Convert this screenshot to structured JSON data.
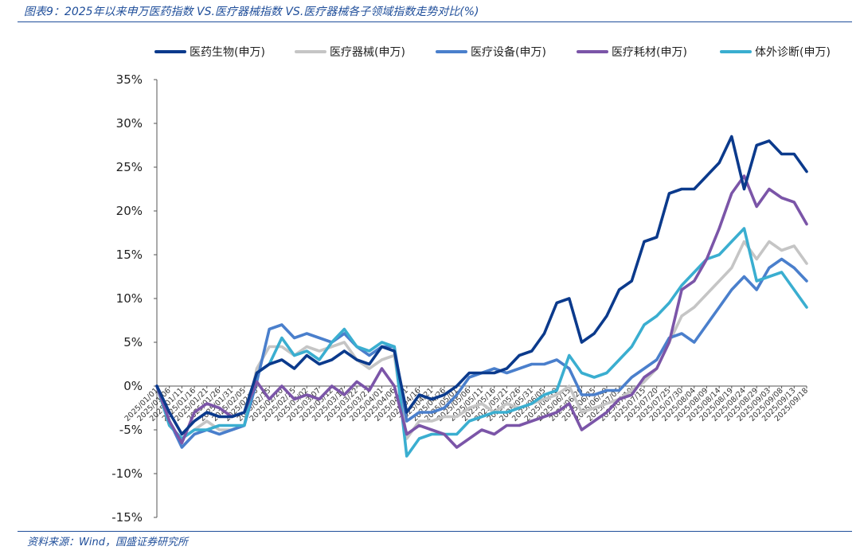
{
  "title": "图表9：2025年以来申万医药指数 VS.医疗器械指数 VS.医疗器械各子领域指数走势对比(%)",
  "source": "资料来源：Wind，国盛证券研究所",
  "chart_data": {
    "type": "line",
    "title": "图表9：2025年以来申万医药指数 VS.医疗器械指数 VS.医疗器械各子领域指数走势对比(%)",
    "ylabel": "",
    "xlabel": "",
    "ylim": [
      -15,
      35
    ],
    "yticks": [
      "35%",
      "30%",
      "25%",
      "20%",
      "15%",
      "10%",
      "5%",
      "0%",
      "-5%",
      "-10%",
      "-15%"
    ],
    "ytick_values": [
      35,
      30,
      25,
      20,
      15,
      10,
      5,
      0,
      -5,
      -10,
      -15
    ],
    "legend_position": "top",
    "grid": false,
    "x": [
      "2025/01/01",
      "2025/01/06",
      "2025/01/11",
      "2025/01/16",
      "2025/01/21",
      "2025/01/26",
      "2025/01/31",
      "2025/02/05",
      "2025/02/10",
      "2025/02/15",
      "2025/02/20",
      "2025/02/25",
      "2025/03/02",
      "2025/03/07",
      "2025/03/12",
      "2025/03/17",
      "2025/03/22",
      "2025/03/27",
      "2025/04/01",
      "2025/04/06",
      "2025/04/11",
      "2025/04/16",
      "2025/04/21",
      "2025/04/26",
      "2025/05/01",
      "2025/05/06",
      "2025/05/11",
      "2025/05/16",
      "2025/05/21",
      "2025/05/26",
      "2025/05/31",
      "2025/06/05",
      "2025/06/10",
      "2025/06/15",
      "2025/06/20",
      "2025/06/25",
      "2025/06/30",
      "2025/07/05",
      "2025/07/10",
      "2025/07/15",
      "2025/07/20",
      "2025/07/25",
      "2025/07/30",
      "2025/08/04",
      "2025/08/09",
      "2025/08/14",
      "2025/08/19",
      "2025/08/24",
      "2025/08/29",
      "2025/09/03",
      "2025/09/08",
      "2025/09/13",
      "2025/09/18"
    ],
    "series": [
      {
        "name": "医药生物(申万)",
        "color": "#0b3a8c",
        "values": [
          0.0,
          -3.0,
          -5.5,
          -4.0,
          -3.0,
          -3.5,
          -3.5,
          -3.0,
          1.5,
          2.5,
          3.0,
          2.0,
          3.5,
          2.5,
          3.0,
          4.0,
          3.0,
          2.5,
          4.5,
          4.0,
          -3.0,
          -1.0,
          -1.5,
          -1.0,
          0.0,
          1.5,
          1.5,
          1.5,
          2.0,
          3.5,
          4.0,
          6.0,
          9.5,
          10.0,
          5.0,
          6.0,
          8.0,
          11.0,
          12.0,
          16.5,
          17.0,
          22.0,
          22.5,
          22.5,
          24.0,
          25.5,
          28.5,
          22.5,
          27.5,
          28.0,
          26.5,
          26.5,
          24.5
        ]
      },
      {
        "name": "医疗器械(申万)",
        "color": "#c5c5c5",
        "values": [
          0.0,
          -4.5,
          -6.0,
          -5.0,
          -4.0,
          -5.0,
          -5.0,
          -4.5,
          2.0,
          4.5,
          4.5,
          3.5,
          4.5,
          4.0,
          4.5,
          5.0,
          3.0,
          2.0,
          3.0,
          3.5,
          -6.0,
          -4.0,
          -4.0,
          -3.5,
          -3.5,
          -2.5,
          -2.0,
          -3.0,
          -2.0,
          -2.5,
          -2.0,
          -1.5,
          -1.0,
          0.0,
          -3.0,
          -2.5,
          -2.0,
          -1.5,
          -0.5,
          0.5,
          2.0,
          5.0,
          8.0,
          9.0,
          10.5,
          12.0,
          13.5,
          16.5,
          14.5,
          16.5,
          15.5,
          16.0,
          14.0
        ]
      },
      {
        "name": "医疗设备(申万)",
        "color": "#4a7fcc",
        "values": [
          0.0,
          -4.0,
          -7.0,
          -5.5,
          -5.0,
          -5.5,
          -5.0,
          -4.5,
          0.5,
          6.5,
          7.0,
          5.5,
          6.0,
          5.5,
          5.0,
          6.0,
          4.5,
          3.5,
          4.5,
          4.5,
          -4.0,
          -3.0,
          -3.0,
          -2.5,
          -1.0,
          1.0,
          1.5,
          2.0,
          1.5,
          2.0,
          2.5,
          2.5,
          3.0,
          2.0,
          -1.0,
          -1.0,
          -0.5,
          -0.5,
          1.0,
          2.0,
          3.0,
          5.5,
          6.0,
          5.0,
          7.0,
          9.0,
          11.0,
          12.5,
          11.0,
          13.5,
          14.5,
          13.5,
          12.0
        ]
      },
      {
        "name": "医疗耗材(申万)",
        "color": "#7b55a8",
        "values": [
          0.0,
          -4.0,
          -6.5,
          -3.0,
          -2.0,
          -2.5,
          -3.5,
          -3.0,
          0.5,
          -1.5,
          0.0,
          -1.5,
          -1.0,
          -1.5,
          0.0,
          -1.0,
          0.5,
          -0.5,
          2.0,
          0.0,
          -5.5,
          -4.5,
          -5.0,
          -5.5,
          -7.0,
          -6.0,
          -5.0,
          -5.5,
          -4.5,
          -4.5,
          -4.0,
          -3.5,
          -3.0,
          -2.0,
          -5.0,
          -4.0,
          -3.0,
          -1.5,
          -1.0,
          1.0,
          2.0,
          5.0,
          11.0,
          12.0,
          14.5,
          18.0,
          22.0,
          24.0,
          20.5,
          22.5,
          21.5,
          21.0,
          18.5
        ]
      },
      {
        "name": "体外诊断(申万)",
        "color": "#3aaed0",
        "values": [
          0.0,
          -4.5,
          -6.0,
          -5.0,
          -5.0,
          -4.5,
          -4.5,
          -4.5,
          1.5,
          2.5,
          5.5,
          3.5,
          4.0,
          3.0,
          5.0,
          6.5,
          4.5,
          4.0,
          5.0,
          4.5,
          -8.0,
          -6.0,
          -5.5,
          -5.5,
          -5.5,
          -4.0,
          -3.5,
          -3.0,
          -3.0,
          -2.5,
          -2.0,
          -1.0,
          -0.5,
          3.5,
          1.5,
          1.0,
          1.5,
          3.0,
          4.5,
          7.0,
          8.0,
          9.5,
          11.5,
          13.0,
          14.5,
          15.0,
          16.5,
          18.0,
          12.0,
          12.5,
          13.0,
          11.0,
          9.0
        ]
      }
    ]
  }
}
